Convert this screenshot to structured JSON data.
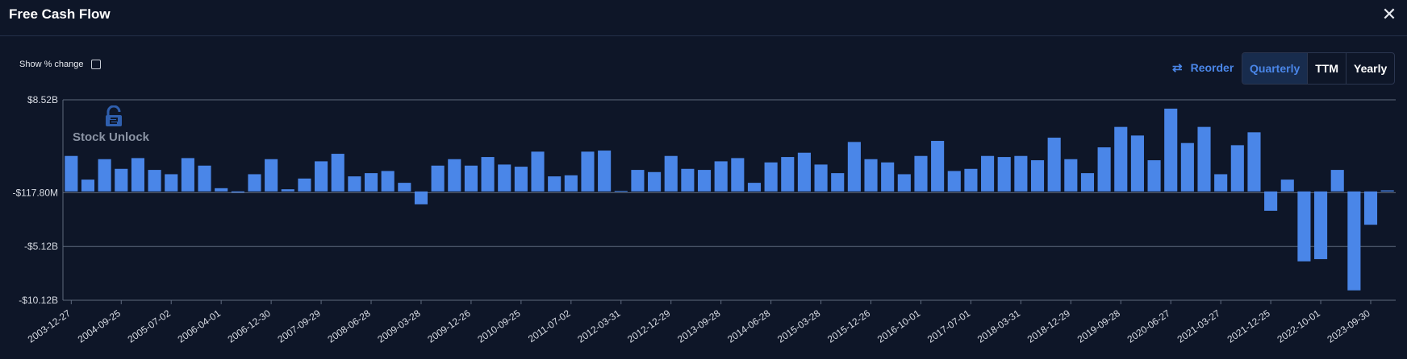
{
  "header": {
    "title": "Free Cash Flow"
  },
  "controls": {
    "show_pct_label": "Show % change",
    "reorder_label": "Reorder",
    "periods": [
      "Quarterly",
      "TTM",
      "Yearly"
    ],
    "active_period": "Quarterly"
  },
  "watermark": {
    "text": "Stock Unlock"
  },
  "colors": {
    "bar": "#4a86e8",
    "background": "#0e1628",
    "accent": "#4a86e8"
  },
  "chart_data": {
    "type": "bar",
    "ylim": [
      -10.12,
      8.52
    ],
    "y_ticks": [
      8.52,
      -0.1178,
      -5.12,
      -10.12
    ],
    "y_tick_labels": [
      "$8.52B",
      "-$117.80M",
      "-$5.12B",
      "-$10.12B"
    ],
    "x_tick_labels": [
      "2003-12-27",
      "2004-09-25",
      "2005-07-02",
      "2006-04-01",
      "2006-12-30",
      "2007-09-29",
      "2008-06-28",
      "2009-03-28",
      "2009-12-26",
      "2010-09-25",
      "2011-07-02",
      "2012-03-31",
      "2012-12-29",
      "2013-09-28",
      "2014-06-28",
      "2015-03-28",
      "2015-12-26",
      "2016-10-01",
      "2017-07-01",
      "2018-03-31",
      "2018-12-29",
      "2019-09-28",
      "2020-06-27",
      "2021-03-27",
      "2021-12-25",
      "2022-10-01",
      "2023-09-30"
    ],
    "grid": true,
    "values": [
      3.3,
      1.1,
      3.0,
      2.1,
      3.1,
      2.0,
      1.6,
      3.1,
      2.4,
      0.3,
      -0.1,
      1.6,
      3.0,
      0.2,
      1.2,
      2.8,
      3.5,
      1.4,
      1.7,
      1.9,
      0.8,
      -1.2,
      2.4,
      3.0,
      2.4,
      3.2,
      2.5,
      2.3,
      3.7,
      1.4,
      1.5,
      3.7,
      3.8,
      0.05,
      2.0,
      1.8,
      3.3,
      2.1,
      2.0,
      2.8,
      3.1,
      0.8,
      2.7,
      3.2,
      3.6,
      2.5,
      1.7,
      4.6,
      3.0,
      2.7,
      1.6,
      3.3,
      4.7,
      1.9,
      2.1,
      3.3,
      3.2,
      3.3,
      2.9,
      5.0,
      3.0,
      1.7,
      4.1,
      6.0,
      5.2,
      2.9,
      7.7,
      4.5,
      6.0,
      1.6,
      4.3,
      5.5,
      -1.8,
      1.1,
      -6.5,
      -6.3,
      2.0,
      -9.2,
      -3.1,
      0.1
    ]
  }
}
